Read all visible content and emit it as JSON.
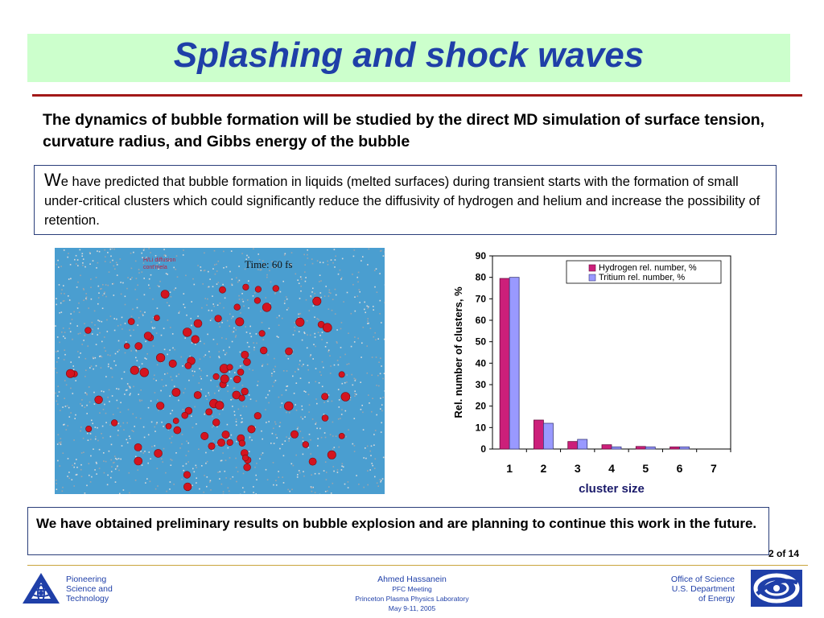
{
  "slide": {
    "title": "Splashing and shock waves",
    "lead": "The dynamics of bubble formation will be studied by the direct MD simulation of surface tension, curvature radius, and Gibbs energy of the bubble",
    "box1_dropcap": "W",
    "box1_text": "e have predicted that bubble formation in liquids (melted surfaces) during transient starts with the formation of small under-critical clusters which could significantly reduce the diffusivity of hydrogen and helium and increase the possibility of retention.",
    "box2_text": "We have obtained preliminary results on bubble explosion and are planning to continue this work in the future.",
    "page_number": "2 of 14"
  },
  "simulation": {
    "time_label": "Time: 60 fs",
    "small_label_line1": "H/Li diffusion",
    "small_label_line2": "cont'mela",
    "background_color": "#4a9ed0"
  },
  "footer": {
    "left_line1": "Pioneering",
    "left_line2": "Science and",
    "left_line3": "Technology",
    "center_name": "Ahmed Hassanein",
    "center_line2": "PFC Meeting",
    "center_line3": "Princeton Plasma Physics Laboratory",
    "center_line4": "May 9-11, 2005",
    "right_line1": "Office of  Science",
    "right_line2": "U.S. Department",
    "right_line3": "of Energy",
    "left_logo_icon": "atom-triangle-logo-icon",
    "right_logo_icon": "doe-swirl-logo-icon"
  },
  "colors": {
    "title": "#1f3fa8",
    "title_band": "#ccffcc",
    "rule": "#a31919",
    "box_border": "#2a3e7a",
    "hydrogen": "#cc1f7a",
    "tritium": "#9999ff"
  },
  "chart_data": {
    "type": "bar",
    "categories": [
      "1",
      "2",
      "3",
      "4",
      "5",
      "6",
      "7"
    ],
    "series": [
      {
        "name": "Hydrogen rel. number, %",
        "values": [
          79.5,
          13.5,
          3.5,
          2.0,
          1.2,
          1.0,
          0
        ]
      },
      {
        "name": "Tritium rel. number, %",
        "values": [
          80.0,
          12.0,
          4.5,
          1.0,
          1.0,
          1.0,
          0
        ]
      }
    ],
    "xlabel": "cluster size",
    "ylabel": "Rel. number of clusters, %",
    "ylim": [
      0,
      90
    ],
    "yticks": [
      0,
      10,
      20,
      30,
      40,
      50,
      60,
      70,
      80,
      90
    ],
    "legend": "top-right",
    "grid": false
  }
}
